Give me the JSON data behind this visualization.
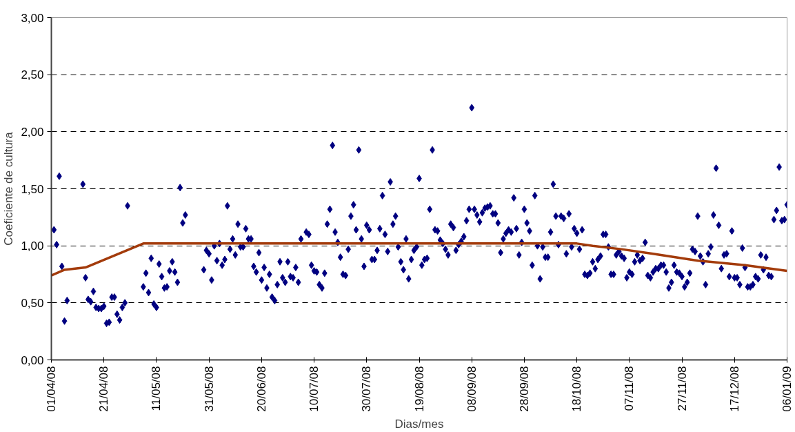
{
  "chart_data": {
    "type": "scatter",
    "xlabel": "Dias/mes",
    "ylabel": "Coeficiente de cultura",
    "grid": "y",
    "xlim": [
      "2008-04-01",
      "2009-01-06"
    ],
    "xticks": [
      {
        "value": "2008-04-01",
        "label": "01/04/08"
      },
      {
        "value": "2008-04-21",
        "label": "21/04/08"
      },
      {
        "value": "2008-05-11",
        "label": "11/05/08"
      },
      {
        "value": "2008-05-31",
        "label": "31/05/08"
      },
      {
        "value": "2008-06-20",
        "label": "20/06/08"
      },
      {
        "value": "2008-07-10",
        "label": "10/07/08"
      },
      {
        "value": "2008-07-30",
        "label": "30/07/08"
      },
      {
        "value": "2008-08-19",
        "label": "19/08/08"
      },
      {
        "value": "2008-09-08",
        "label": "08/09/08"
      },
      {
        "value": "2008-09-28",
        "label": "28/09/08"
      },
      {
        "value": "2008-10-18",
        "label": "18/10/08"
      },
      {
        "value": "2008-11-07",
        "label": "07/11/08"
      },
      {
        "value": "2008-11-27",
        "label": "27/11/08"
      },
      {
        "value": "2008-12-17",
        "label": "17/12/08"
      },
      {
        "value": "2009-01-06",
        "label": "06/01/09"
      }
    ],
    "ylim": [
      0,
      3
    ],
    "yticks": [
      {
        "value": 0,
        "label": "0,00"
      },
      {
        "value": 0.5,
        "label": "0,50"
      },
      {
        "value": 1,
        "label": "1,00"
      },
      {
        "value": 1.5,
        "label": "1,50"
      },
      {
        "value": 2,
        "label": "2,00"
      },
      {
        "value": 2.5,
        "label": "2,50"
      },
      {
        "value": 3,
        "label": "3,00"
      }
    ],
    "series": [
      {
        "marker": "diamond",
        "color": "#000080",
        "x": [
          "2008-04-02",
          "2008-04-03",
          "2008-04-04",
          "2008-04-05",
          "2008-04-06",
          "2008-04-07",
          "2008-04-13",
          "2008-04-14",
          "2008-04-15",
          "2008-04-16",
          "2008-04-17",
          "2008-04-18",
          "2008-04-19",
          "2008-04-20",
          "2008-04-21",
          "2008-04-22",
          "2008-04-23",
          "2008-04-24",
          "2008-04-25",
          "2008-04-26",
          "2008-04-27",
          "2008-04-28",
          "2008-04-29",
          "2008-04-30",
          "2008-05-06",
          "2008-05-07",
          "2008-05-08",
          "2008-05-09",
          "2008-05-10",
          "2008-05-11",
          "2008-05-12",
          "2008-05-13",
          "2008-05-14",
          "2008-05-15",
          "2008-05-16",
          "2008-05-17",
          "2008-05-18",
          "2008-05-19",
          "2008-05-20",
          "2008-05-21",
          "2008-05-22",
          "2008-05-29",
          "2008-05-30",
          "2008-05-31",
          "2008-06-01",
          "2008-06-02",
          "2008-06-03",
          "2008-06-04",
          "2008-06-05",
          "2008-06-06",
          "2008-06-07",
          "2008-06-08",
          "2008-06-09",
          "2008-06-10",
          "2008-06-11",
          "2008-06-12",
          "2008-06-13",
          "2008-06-14",
          "2008-06-15",
          "2008-06-16",
          "2008-06-17",
          "2008-06-18",
          "2008-06-19",
          "2008-06-20",
          "2008-06-21",
          "2008-06-22",
          "2008-06-23",
          "2008-06-24",
          "2008-06-25",
          "2008-06-26",
          "2008-06-27",
          "2008-06-28",
          "2008-06-29",
          "2008-06-30",
          "2008-07-01",
          "2008-07-02",
          "2008-07-03",
          "2008-07-04",
          "2008-07-05",
          "2008-07-07",
          "2008-07-08",
          "2008-07-09",
          "2008-07-10",
          "2008-07-11",
          "2008-07-12",
          "2008-07-13",
          "2008-07-14",
          "2008-07-15",
          "2008-07-16",
          "2008-07-17",
          "2008-07-18",
          "2008-07-19",
          "2008-07-20",
          "2008-07-21",
          "2008-07-22",
          "2008-07-23",
          "2008-07-24",
          "2008-07-25",
          "2008-07-26",
          "2008-07-27",
          "2008-07-28",
          "2008-07-29",
          "2008-07-30",
          "2008-07-31",
          "2008-08-01",
          "2008-08-02",
          "2008-08-03",
          "2008-08-04",
          "2008-08-05",
          "2008-08-06",
          "2008-08-07",
          "2008-08-08",
          "2008-08-09",
          "2008-08-10",
          "2008-08-11",
          "2008-08-12",
          "2008-08-13",
          "2008-08-14",
          "2008-08-15",
          "2008-08-16",
          "2008-08-17",
          "2008-08-18",
          "2008-08-19",
          "2008-08-20",
          "2008-08-21",
          "2008-08-22",
          "2008-08-23",
          "2008-08-24",
          "2008-08-25",
          "2008-08-26",
          "2008-08-27",
          "2008-08-28",
          "2008-08-29",
          "2008-08-30",
          "2008-08-31",
          "2008-09-01",
          "2008-09-02",
          "2008-09-03",
          "2008-09-04",
          "2008-09-05",
          "2008-09-06",
          "2008-09-07",
          "2008-09-08",
          "2008-09-09",
          "2008-09-10",
          "2008-09-11",
          "2008-09-12",
          "2008-09-13",
          "2008-09-14",
          "2008-09-15",
          "2008-09-16",
          "2008-09-17",
          "2008-09-18",
          "2008-09-19",
          "2008-09-20",
          "2008-09-21",
          "2008-09-22",
          "2008-09-23",
          "2008-09-24",
          "2008-09-25",
          "2008-09-26",
          "2008-09-27",
          "2008-09-28",
          "2008-09-29",
          "2008-09-30",
          "2008-10-01",
          "2008-10-02",
          "2008-10-03",
          "2008-10-04",
          "2008-10-05",
          "2008-10-06",
          "2008-10-07",
          "2008-10-08",
          "2008-10-09",
          "2008-10-10",
          "2008-10-11",
          "2008-10-12",
          "2008-10-13",
          "2008-10-14",
          "2008-10-15",
          "2008-10-16",
          "2008-10-17",
          "2008-10-18",
          "2008-10-19",
          "2008-10-20",
          "2008-10-21",
          "2008-10-22",
          "2008-10-23",
          "2008-10-24",
          "2008-10-25",
          "2008-10-26",
          "2008-10-27",
          "2008-10-28",
          "2008-10-29",
          "2008-10-30",
          "2008-10-31",
          "2008-11-01",
          "2008-11-02",
          "2008-11-03",
          "2008-11-04",
          "2008-11-05",
          "2008-11-06",
          "2008-11-07",
          "2008-11-08",
          "2008-11-09",
          "2008-11-10",
          "2008-11-11",
          "2008-11-12",
          "2008-11-13",
          "2008-11-14",
          "2008-11-15",
          "2008-11-16",
          "2008-11-17",
          "2008-11-18",
          "2008-11-19",
          "2008-11-20",
          "2008-11-21",
          "2008-11-22",
          "2008-11-23",
          "2008-11-24",
          "2008-11-25",
          "2008-11-26",
          "2008-11-27",
          "2008-11-28",
          "2008-11-29",
          "2008-11-30",
          "2008-12-01",
          "2008-12-02",
          "2008-12-03",
          "2008-12-04",
          "2008-12-05",
          "2008-12-06",
          "2008-12-07",
          "2008-12-08",
          "2008-12-09",
          "2008-12-10",
          "2008-12-11",
          "2008-12-12",
          "2008-12-13",
          "2008-12-14",
          "2008-12-15",
          "2008-12-16",
          "2008-12-17",
          "2008-12-18",
          "2008-12-19",
          "2008-12-20",
          "2008-12-21",
          "2008-12-22",
          "2008-12-23",
          "2008-12-24",
          "2008-12-25",
          "2008-12-26",
          "2008-12-27",
          "2008-12-28",
          "2008-12-29",
          "2008-12-30",
          "2008-12-31",
          "2009-01-01",
          "2009-01-02",
          "2009-01-03",
          "2009-01-04",
          "2009-01-05",
          "2009-01-06"
        ],
        "values": [
          1.14,
          1.01,
          1.61,
          0.82,
          0.34,
          0.52,
          1.54,
          0.72,
          0.53,
          0.51,
          0.6,
          0.46,
          0.45,
          0.45,
          0.47,
          0.32,
          0.33,
          0.55,
          0.55,
          0.4,
          0.35,
          0.46,
          0.5,
          1.35,
          0.64,
          0.76,
          0.59,
          0.89,
          0.49,
          0.46,
          0.84,
          0.73,
          0.63,
          0.64,
          0.78,
          0.86,
          0.77,
          0.68,
          1.51,
          1.2,
          1.27,
          0.79,
          0.96,
          0.93,
          0.7,
          1.0,
          0.87,
          1.02,
          0.83,
          0.88,
          1.35,
          0.97,
          1.06,
          0.92,
          1.19,
          0.99,
          0.99,
          1.15,
          1.06,
          1.06,
          0.82,
          0.77,
          0.94,
          0.7,
          0.81,
          0.63,
          0.75,
          0.55,
          0.52,
          0.66,
          0.86,
          0.72,
          0.68,
          0.86,
          0.73,
          0.72,
          0.81,
          0.68,
          1.06,
          1.12,
          1.1,
          0.83,
          0.78,
          0.77,
          0.66,
          0.63,
          0.76,
          1.19,
          1.32,
          1.88,
          1.12,
          1.03,
          0.9,
          0.75,
          0.74,
          0.97,
          1.26,
          1.36,
          1.14,
          1.84,
          1.06,
          0.82,
          1.18,
          1.14,
          0.88,
          0.88,
          0.96,
          1.15,
          1.44,
          1.1,
          0.95,
          1.56,
          1.19,
          1.26,
          0.99,
          0.86,
          0.79,
          1.06,
          0.71,
          0.88,
          0.96,
          0.99,
          1.59,
          0.83,
          0.88,
          0.89,
          1.32,
          1.84,
          1.14,
          1.13,
          1.05,
          1.02,
          0.97,
          0.92,
          1.19,
          1.16,
          0.96,
          1.01,
          1.04,
          1.08,
          1.22,
          1.32,
          2.21,
          1.32,
          1.27,
          1.21,
          1.29,
          1.33,
          1.34,
          1.35,
          1.28,
          1.28,
          1.2,
          0.94,
          1.06,
          1.11,
          1.14,
          1.12,
          1.42,
          1.15,
          0.92,
          1.03,
          1.32,
          1.2,
          1.13,
          0.83,
          1.44,
          1.0,
          0.71,
          0.99,
          0.9,
          0.9,
          1.12,
          1.54,
          1.26,
          1.01,
          1.26,
          1.24,
          0.93,
          1.28,
          0.99,
          1.15,
          1.11,
          0.97,
          1.14,
          0.75,
          0.74,
          0.76,
          0.86,
          0.8,
          0.88,
          0.91,
          1.1,
          1.1,
          0.99,
          0.75,
          0.75,
          0.92,
          0.95,
          0.91,
          0.89,
          0.72,
          0.77,
          0.75,
          0.86,
          0.92,
          0.87,
          0.89,
          1.03,
          0.74,
          0.72,
          0.77,
          0.8,
          0.8,
          0.83,
          0.83,
          0.77,
          0.63,
          0.68,
          0.83,
          0.77,
          0.76,
          0.73,
          0.64,
          0.68,
          0.76,
          0.97,
          0.95,
          1.26,
          0.91,
          0.86,
          0.66,
          0.93,
          0.99,
          1.27,
          1.68,
          1.18,
          0.8,
          0.92,
          0.93,
          0.73,
          1.13,
          0.72,
          0.72,
          0.66,
          0.98,
          0.81,
          0.64,
          0.64,
          0.66,
          0.73,
          0.71,
          0.92,
          0.79,
          0.9,
          0.74,
          0.73,
          1.23,
          1.31,
          1.69,
          1.22,
          1.23,
          1.36
        ]
      },
      {
        "type": "line",
        "marker": "none",
        "line_style": "solid",
        "color": "#a33b0b",
        "x": [
          "2008-04-01",
          "2008-04-06",
          "2008-04-14",
          "2008-05-06",
          "2008-10-18",
          "2008-10-24",
          "2008-11-04",
          "2008-11-16",
          "2008-12-03",
          "2008-12-21",
          "2009-01-06"
        ],
        "values": [
          0.74,
          0.79,
          0.81,
          1.02,
          1.02,
          1.0,
          0.97,
          0.93,
          0.87,
          0.83,
          0.78
        ]
      }
    ]
  }
}
